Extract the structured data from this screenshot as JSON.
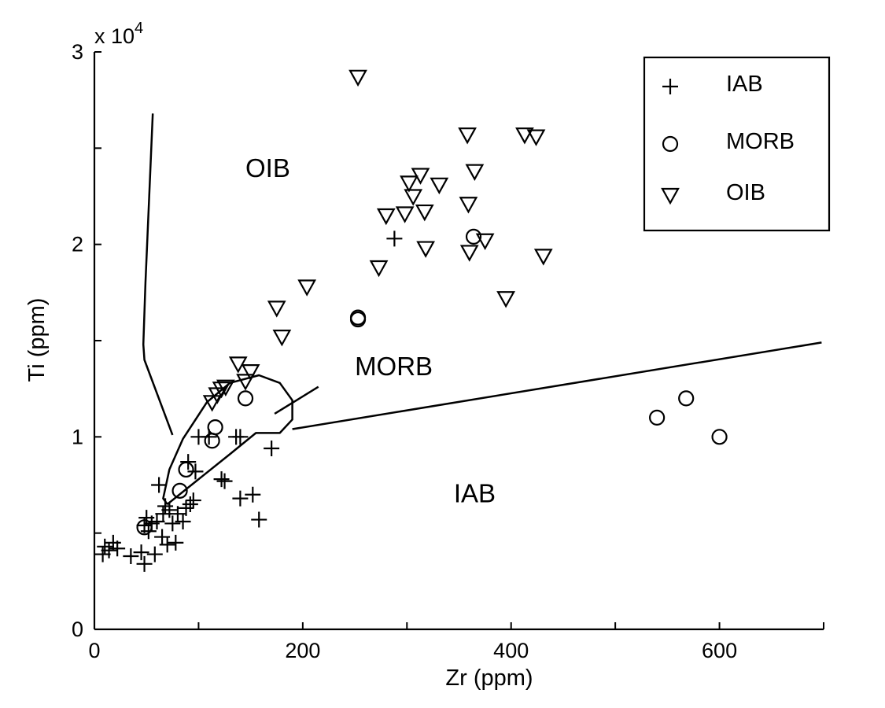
{
  "chart_data": {
    "type": "scatter",
    "title": "",
    "xlabel": "Zr (ppm)",
    "ylabel": "Ti (ppm)",
    "y_multiplier_label": "x 10",
    "y_multiplier_exponent": "4",
    "xlim": [
      0,
      700
    ],
    "ylim": [
      0,
      30000
    ],
    "x_ticks": [
      0,
      100,
      200,
      300,
      400,
      500,
      600,
      700
    ],
    "x_tick_labels": [
      "0",
      "",
      "200",
      "",
      "400",
      "",
      "600",
      ""
    ],
    "y_ticks": [
      0,
      5000,
      10000,
      15000,
      20000,
      25000,
      30000
    ],
    "y_tick_labels": [
      "0",
      "",
      "1",
      "",
      "2",
      "",
      "3"
    ],
    "grid": false,
    "legend_position": "top-right",
    "series": [
      {
        "name": "IAB",
        "marker": "plus",
        "points": [
          [
            8,
            3900
          ],
          [
            10,
            4300
          ],
          [
            14,
            4100
          ],
          [
            18,
            4500
          ],
          [
            22,
            4200
          ],
          [
            35,
            3800
          ],
          [
            45,
            4000
          ],
          [
            48,
            3400
          ],
          [
            48,
            5400
          ],
          [
            50,
            5800
          ],
          [
            52,
            5100
          ],
          [
            55,
            5500
          ],
          [
            58,
            3900
          ],
          [
            60,
            5600
          ],
          [
            62,
            7500
          ],
          [
            65,
            4800
          ],
          [
            66,
            6000
          ],
          [
            68,
            6400
          ],
          [
            70,
            4400
          ],
          [
            72,
            6200
          ],
          [
            75,
            5500
          ],
          [
            78,
            4500
          ],
          [
            80,
            6000
          ],
          [
            85,
            5600
          ],
          [
            88,
            6300
          ],
          [
            90,
            8700
          ],
          [
            92,
            6500
          ],
          [
            95,
            6700
          ],
          [
            97,
            8200
          ],
          [
            100,
            10000
          ],
          [
            110,
            10000
          ],
          [
            122,
            7800
          ],
          [
            125,
            7700
          ],
          [
            136,
            10000
          ],
          [
            140,
            10000
          ],
          [
            140,
            6800
          ],
          [
            152,
            7000
          ],
          [
            158,
            5700
          ],
          [
            170,
            9400
          ],
          [
            288,
            20300
          ]
        ]
      },
      {
        "name": "MORB",
        "marker": "circle",
        "points": [
          [
            48,
            5300
          ],
          [
            82,
            7200
          ],
          [
            88,
            8300
          ],
          [
            113,
            9800
          ],
          [
            116,
            10500
          ],
          [
            145,
            12000
          ],
          [
            253,
            16200
          ],
          [
            253,
            16100
          ],
          [
            364,
            20400
          ],
          [
            540,
            11000
          ],
          [
            568,
            12000
          ],
          [
            600,
            10000
          ]
        ]
      },
      {
        "name": "OIB",
        "marker": "triangle-down",
        "points": [
          [
            113,
            11800
          ],
          [
            118,
            12200
          ],
          [
            122,
            12500
          ],
          [
            126,
            12600
          ],
          [
            138,
            13800
          ],
          [
            145,
            12900
          ],
          [
            150,
            13400
          ],
          [
            175,
            16700
          ],
          [
            180,
            15200
          ],
          [
            204,
            17800
          ],
          [
            253,
            28700
          ],
          [
            273,
            18800
          ],
          [
            280,
            21500
          ],
          [
            298,
            21600
          ],
          [
            302,
            23200
          ],
          [
            306,
            22500
          ],
          [
            313,
            23600
          ],
          [
            317,
            21700
          ],
          [
            318,
            19800
          ],
          [
            331,
            23100
          ],
          [
            358,
            25700
          ],
          [
            359,
            22100
          ],
          [
            360,
            19600
          ],
          [
            365,
            23800
          ],
          [
            375,
            20200
          ],
          [
            395,
            17200
          ],
          [
            413,
            25700
          ],
          [
            424,
            25600
          ],
          [
            431,
            19400
          ]
        ]
      }
    ],
    "fields": [
      {
        "name": "OIB",
        "label": "OIB",
        "boundary": [
          [
            56,
            26800
          ],
          [
            53,
            23000
          ],
          [
            49,
            18000
          ],
          [
            47,
            14800
          ],
          [
            48,
            14000
          ],
          [
            75,
            10100
          ]
        ]
      },
      {
        "name": "MORB",
        "label": "MORB",
        "boundary": [
          [
            70,
            6500
          ],
          [
            130,
            9100
          ],
          [
            155,
            10200
          ],
          [
            178,
            10200
          ],
          [
            190,
            10900
          ],
          [
            190,
            11900
          ],
          [
            178,
            12800
          ],
          [
            158,
            13200
          ],
          [
            130,
            12800
          ],
          [
            108,
            11800
          ],
          [
            85,
            9900
          ],
          [
            72,
            8300
          ],
          [
            66,
            6800
          ],
          [
            70,
            6500
          ]
        ]
      },
      {
        "name": "IAB-MORB divide",
        "label": "IAB",
        "boundary": [
          [
            190,
            10400
          ],
          [
            698,
            14900
          ]
        ]
      }
    ],
    "annotations": [
      {
        "text": "OIB",
        "x": 145,
        "y": 23500
      },
      {
        "text": "MORB",
        "x": 250,
        "y": 13200
      },
      {
        "text": "IAB",
        "x": 345,
        "y": 6600
      }
    ],
    "leader_line": {
      "from": [
        215,
        12600
      ],
      "to": [
        173,
        11200
      ]
    }
  }
}
